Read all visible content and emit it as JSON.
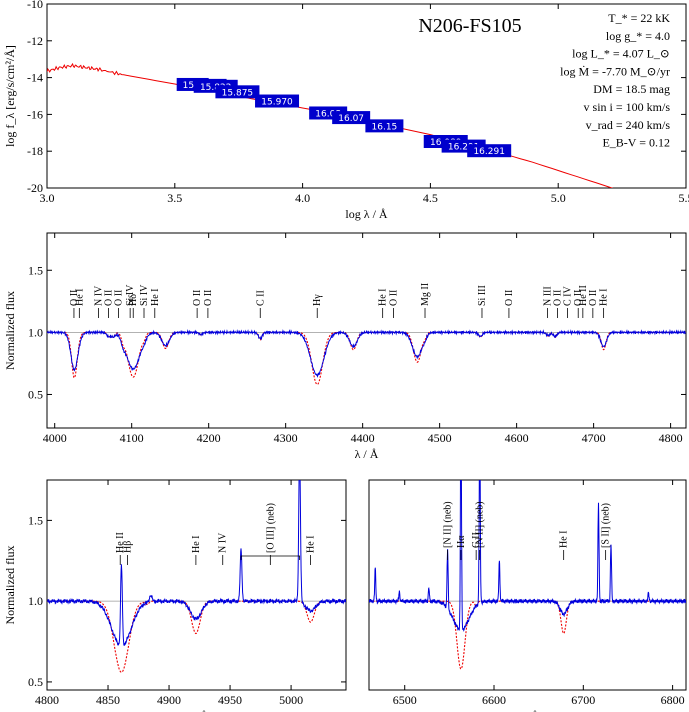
{
  "colors": {
    "observed": "#0000dd",
    "model": "#ee0000",
    "photbox": "#0000cc",
    "photlabel": "#ffffff"
  },
  "chart_data": [
    {
      "type": "line",
      "panel": "sed",
      "star_name": "N206-FS105",
      "xlabel": "log λ / Å",
      "ylabel": "log f_λ [erg/s/cm²/Å]",
      "xlim": [
        3.0,
        5.5
      ],
      "ylim": [
        -20,
        -10
      ],
      "xticks": [
        "3.0",
        "3.5",
        "4.0",
        "4.5",
        "5.0",
        "5.5"
      ],
      "yticks": [
        "-10",
        "-12",
        "-14",
        "-16",
        "-18",
        "-20"
      ],
      "params": [
        "T_* = 22 kK",
        "log g_* = 4.0",
        "log L_* = 4.07 L_⊙",
        "log Ṁ = -7.70 M_⊙/yr",
        "DM = 18.5 mag",
        "v sin i = 100 km/s",
        "v_rad = 240 km/s",
        "E_B-V = 0.12"
      ],
      "sed_model": [
        [
          3.0,
          -13.65
        ],
        [
          3.05,
          -13.45
        ],
        [
          3.1,
          -13.35
        ],
        [
          3.15,
          -13.45
        ],
        [
          3.2,
          -13.55
        ],
        [
          3.3,
          -13.85
        ],
        [
          3.4,
          -14.1
        ],
        [
          3.5,
          -14.35
        ],
        [
          3.6,
          -14.6
        ],
        [
          3.7,
          -14.85
        ],
        [
          3.8,
          -15.15
        ],
        [
          3.9,
          -15.4
        ],
        [
          4.0,
          -15.65
        ],
        [
          4.1,
          -15.9
        ],
        [
          4.2,
          -16.2
        ],
        [
          4.3,
          -16.5
        ],
        [
          4.4,
          -16.8
        ],
        [
          4.5,
          -17.1
        ],
        [
          4.6,
          -17.45
        ],
        [
          4.7,
          -17.8
        ],
        [
          4.8,
          -18.2
        ],
        [
          4.9,
          -18.6
        ],
        [
          5.0,
          -19.05
        ],
        [
          5.1,
          -19.5
        ],
        [
          5.2,
          -19.95
        ],
        [
          5.25,
          -20.2
        ]
      ],
      "photometry": [
        {
          "label": "15.1",
          "x": 3.57,
          "y": -14.4
        },
        {
          "label": "15.8",
          "x": 3.64,
          "y": -14.45
        },
        {
          "label": "15.822",
          "x": 3.66,
          "y": -14.5
        },
        {
          "label": "15.875",
          "x": 3.745,
          "y": -14.8
        },
        {
          "label": "15.970",
          "x": 3.9,
          "y": -15.3
        },
        {
          "label": "16.08",
          "x": 4.1,
          "y": -15.95
        },
        {
          "label": "16.07",
          "x": 4.19,
          "y": -16.2
        },
        {
          "label": "16.15",
          "x": 4.32,
          "y": -16.65
        },
        {
          "label": "16.089",
          "x": 4.56,
          "y": -17.5
        },
        {
          "label": "16.291",
          "x": 4.63,
          "y": -17.75
        },
        {
          "label": "16.291",
          "x": 4.73,
          "y": -18.0
        }
      ]
    },
    {
      "type": "line",
      "panel": "blue",
      "xlabel": "λ / Å",
      "ylabel": "Normalized flux",
      "xlim": [
        3990,
        4820
      ],
      "ylim": [
        0.23,
        1.8
      ],
      "xticks": [
        "4000",
        "4100",
        "4200",
        "4300",
        "4400",
        "4500",
        "4600",
        "4700",
        "4800"
      ],
      "yticks": [
        "0.5",
        "1.0",
        "1.5"
      ],
      "lines": [
        {
          "w": 4025,
          "depth": 0.12,
          "wid": 3
        },
        {
          "w": 4026,
          "depth": 0.25,
          "wid": 4
        },
        {
          "w": 4070,
          "depth": 0.04,
          "wid": 2
        },
        {
          "w": 4076,
          "depth": 0.04,
          "wid": 2
        },
        {
          "w": 4089,
          "depth": 0.05,
          "wid": 2
        },
        {
          "w": 4102,
          "depth": 0.36,
          "wid": 7
        },
        {
          "w": 4116,
          "depth": 0.03,
          "wid": 2
        },
        {
          "w": 4144,
          "depth": 0.13,
          "wid": 4
        },
        {
          "w": 4190,
          "depth": 0.02,
          "wid": 2
        },
        {
          "w": 4267,
          "depth": 0.06,
          "wid": 2
        },
        {
          "w": 4341,
          "depth": 0.42,
          "wid": 7
        },
        {
          "w": 4388,
          "depth": 0.14,
          "wid": 4
        },
        {
          "w": 4471,
          "depth": 0.24,
          "wid": 5
        },
        {
          "w": 4481,
          "depth": 0.03,
          "wid": 2
        },
        {
          "w": 4553,
          "depth": 0.04,
          "wid": 2
        },
        {
          "w": 4641,
          "depth": 0.03,
          "wid": 2
        },
        {
          "w": 4650,
          "depth": 0.04,
          "wid": 2
        },
        {
          "w": 4713,
          "depth": 0.14,
          "wid": 3
        }
      ],
      "idents": [
        {
          "label": "O II",
          "w": 4025
        },
        {
          "label": "He I",
          "w": 4032
        },
        {
          "label": "N IV",
          "w": 4057
        },
        {
          "label": "O II",
          "w": 4070
        },
        {
          "label": "O II",
          "w": 4083
        },
        {
          "label": "Si IV",
          "w": 4098
        },
        {
          "label": "Hδ",
          "w": 4102
        },
        {
          "label": "Si IV",
          "w": 4116
        },
        {
          "label": "He I",
          "w": 4130
        },
        {
          "label": "O II",
          "w": 4185
        },
        {
          "label": "O II",
          "w": 4199
        },
        {
          "label": "C II",
          "w": 4267
        },
        {
          "label": "Hγ",
          "w": 4341
        },
        {
          "label": "He I",
          "w": 4426
        },
        {
          "label": "O II",
          "w": 4440
        },
        {
          "label": "Mg II",
          "w": 4481
        },
        {
          "label": "Si III",
          "w": 4555
        },
        {
          "label": "O II",
          "w": 4590
        },
        {
          "label": "N III",
          "w": 4640
        },
        {
          "label": "O II",
          "w": 4653
        },
        {
          "label": "C IV",
          "w": 4666
        },
        {
          "label": "O II",
          "w": 4680
        },
        {
          "label": "He II",
          "w": 4686
        },
        {
          "label": "O II",
          "w": 4699
        },
        {
          "label": "He I",
          "w": 4713
        }
      ]
    },
    {
      "type": "line",
      "panel": "hbeta",
      "xlabel": "λ / Å",
      "ylabel": "Normalized flux",
      "xlim": [
        4800,
        5045
      ],
      "ylim": [
        0.45,
        1.75
      ],
      "xticks": [
        "4800",
        "4850",
        "4900",
        "4950",
        "5000"
      ],
      "yticks": [
        "0.5",
        "1.0",
        "1.5"
      ],
      "idents": [
        {
          "label": "He II",
          "w": 4860
        },
        {
          "label": "Hβ",
          "w": 4866
        },
        {
          "label": "He I",
          "w": 4922
        },
        {
          "label": "N IV",
          "w": 4944
        },
        {
          "label": "[O III] (neb)",
          "w": 4983
        },
        {
          "label": "He I",
          "w": 5016
        }
      ]
    },
    {
      "type": "line",
      "panel": "halpha",
      "xlabel": "λ / Å",
      "ylabel": "",
      "xlim": [
        6460,
        6815
      ],
      "ylim": [
        0.45,
        1.75
      ],
      "xticks": [
        "6500",
        "6600",
        "6700",
        "6800"
      ],
      "yticks": [],
      "idents": [
        {
          "label": "[N II] (neb)",
          "w": 6548
        },
        {
          "label": "Hα",
          "w": 6563
        },
        {
          "label": "C II",
          "w": 6580
        },
        {
          "label": "[N II] (neb)",
          "w": 6584
        },
        {
          "label": "He I",
          "w": 6678
        },
        {
          "label": "[S II] (neb)",
          "w": 6725
        }
      ]
    }
  ]
}
